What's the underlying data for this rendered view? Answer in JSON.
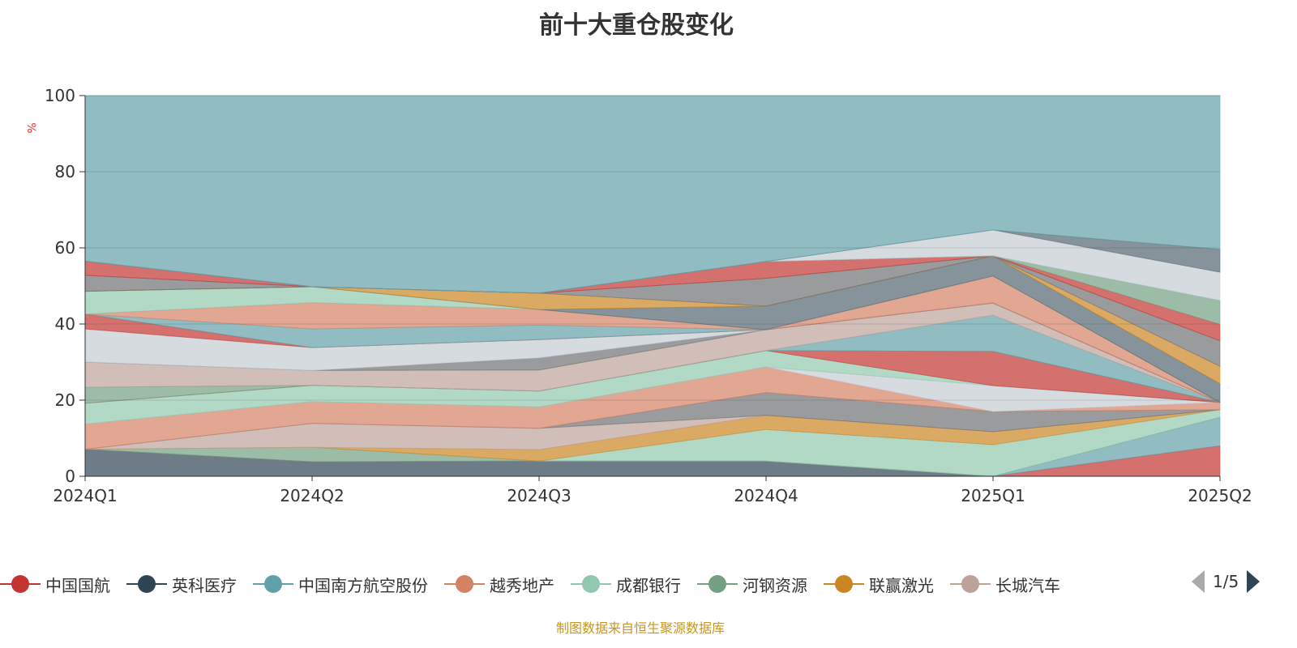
{
  "chart_data": {
    "type": "area",
    "stacked": true,
    "title": "前十大重仓股变化",
    "ylabel": "%",
    "ylim": [
      0,
      100
    ],
    "yticks": [
      0,
      20,
      40,
      60,
      80,
      100
    ],
    "categories": [
      "2024Q1",
      "2024Q2",
      "2024Q3",
      "2024Q4",
      "2025Q1",
      "2025Q2"
    ],
    "grid": true,
    "legend_position": "bottom",
    "series": [
      {
        "color": "#2f4554",
        "values": [
          7.1,
          3.8,
          4.0,
          4.0,
          0,
          0
        ]
      },
      {
        "color": "#c23531",
        "values": [
          0,
          0,
          0,
          0,
          0,
          8.0
        ]
      },
      {
        "color": "#61a0a8",
        "values": [
          0,
          0,
          0,
          0,
          0,
          7.5
        ]
      },
      {
        "color": "#749f83",
        "values": [
          0,
          3.8,
          0,
          0,
          0,
          0
        ]
      },
      {
        "color": "#91c7ae",
        "values": [
          0,
          0,
          0,
          8.3,
          8.3,
          2.0
        ]
      },
      {
        "color": "#ca8622",
        "values": [
          0,
          0,
          3.0,
          3.7,
          3.4,
          0
        ]
      },
      {
        "color": "#bda29a",
        "values": [
          0,
          6.3,
          5.6,
          0,
          0,
          0
        ]
      },
      {
        "color": "#6e7074",
        "values": [
          0,
          0,
          0,
          6.0,
          5.3,
          0
        ]
      },
      {
        "color": "#d48265",
        "values": [
          6.6,
          5.7,
          5.6,
          6.7,
          0,
          1.9
        ]
      },
      {
        "color": "#c4ccd3",
        "values": [
          0,
          0,
          0,
          0,
          6.8,
          0
        ]
      },
      {
        "color": "#91c7ae",
        "values": [
          5.5,
          4.3,
          4.2,
          4.3,
          0,
          0
        ]
      },
      {
        "color": "#c23531",
        "values": [
          0,
          0,
          0,
          0,
          9.0,
          0
        ]
      },
      {
        "color": "#749f83",
        "values": [
          4.2,
          0,
          0,
          0,
          0,
          0
        ]
      },
      {
        "color": "#61a0a8",
        "values": [
          0,
          0,
          0,
          0,
          9.5,
          0
        ]
      },
      {
        "color": "#bda29a",
        "values": [
          6.6,
          3.9,
          5.5,
          5.5,
          3.2,
          0
        ]
      },
      {
        "color": "#6e7074",
        "values": [
          0,
          0,
          3.2,
          0,
          0,
          0
        ]
      },
      {
        "color": "#c4ccd3",
        "values": [
          8.7,
          6.0,
          4.8,
          0,
          0,
          0
        ]
      },
      {
        "color": "#c23531",
        "values": [
          3.9,
          0,
          0,
          0,
          0,
          0
        ]
      },
      {
        "color": "#61a0a8",
        "values": [
          0,
          4.9,
          3.8,
          0,
          0,
          0
        ]
      },
      {
        "color": "#d48265",
        "values": [
          0,
          6.9,
          4.1,
          0,
          7.1,
          0
        ]
      },
      {
        "color": "#91c7ae",
        "values": [
          6.0,
          4.2,
          0,
          0,
          0,
          0
        ]
      },
      {
        "color": "#546570",
        "values": [
          0,
          0,
          0,
          6.2,
          5.3,
          4.9
        ]
      },
      {
        "color": "#ca8622",
        "values": [
          0,
          0,
          4.3,
          0,
          0,
          4.6
        ]
      },
      {
        "color": "#6e7074",
        "values": [
          4.2,
          0,
          0,
          7.3,
          0,
          6.7
        ]
      },
      {
        "color": "#c23531",
        "values": [
          3.7,
          0,
          0,
          4.4,
          0,
          4.3
        ]
      },
      {
        "color": "#749f83",
        "values": [
          0,
          0,
          0,
          0,
          0,
          6.3
        ]
      },
      {
        "color": "#c4ccd3",
        "values": [
          0,
          0,
          0,
          0,
          6.8,
          7.4
        ]
      },
      {
        "color": "#546570",
        "values": [
          0,
          0,
          0,
          0,
          0,
          6.0
        ]
      },
      {
        "color": "#61a0a8",
        "values": [
          43.5,
          50.2,
          51.9,
          43.6,
          35.3,
          40.4
        ]
      }
    ]
  },
  "legend": {
    "items": [
      {
        "name": "中国国航",
        "color": "#c23531"
      },
      {
        "name": "英科医疗",
        "color": "#2f4554"
      },
      {
        "name": "中国南方航空股份",
        "color": "#61a0a8"
      },
      {
        "name": "越秀地产",
        "color": "#d48265"
      },
      {
        "name": "成都银行",
        "color": "#91c7ae"
      },
      {
        "name": "河钢资源",
        "color": "#749f83"
      },
      {
        "name": "联赢激光",
        "color": "#ca8622"
      },
      {
        "name": "长城汽车",
        "color": "#bda29a"
      }
    ],
    "page": "1/5"
  },
  "source": "制图数据来自恒生聚源数据库"
}
